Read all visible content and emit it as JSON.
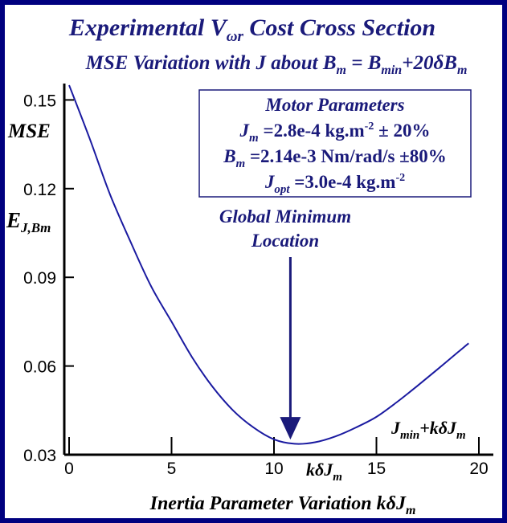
{
  "chart_data": {
    "type": "line",
    "title_parts": {
      "a": "Experimental V",
      "a_sub": "ωr",
      "b": " Cost Cross Section"
    },
    "subtitle_parts": {
      "a": "MSE Variation with J about B",
      "a_sub": "m",
      "b": " = B",
      "b_sub": "min",
      "c": "+20δB",
      "c_sub": "m"
    },
    "ylabel_parts": {
      "mse": "MSE",
      "e": "E",
      "e_sub": "J,Bm"
    },
    "xlabel": "Inertia Parameter Variation kδJ",
    "xlabel_sub": "m",
    "x_inner_label": "kδJ",
    "x_inner_label_sub": "m",
    "curve_label": {
      "a": "J",
      "a_sub": "min",
      "b": "+kδJ",
      "b_sub": "m"
    },
    "annotation": {
      "line1": "Global Minimum",
      "line2": "Location",
      "arrow_x": 10.8,
      "arrow_tip_y": 0.0335
    },
    "params_box": {
      "title": "Motor Parameters",
      "line1": {
        "a": "J",
        "a_sub": "m",
        "b": " =2.8e-4 kg.m",
        "b_sup": "-2",
        "c": " ± 20%"
      },
      "line2": {
        "a": "B",
        "a_sub": "m",
        "b": " =2.14e-3 Nm/rad/s ±80%"
      },
      "line3": {
        "a": "J",
        "a_sub": "opt",
        "b": " =3.0e-4 kg.m",
        "b_sup": "-2"
      }
    },
    "xlim": [
      0,
      20.5
    ],
    "ylim": [
      0.03,
      0.155
    ],
    "x_ticks": [
      0,
      5,
      10,
      15,
      20
    ],
    "y_ticks": [
      0.03,
      0.06,
      0.09,
      0.12,
      0.15
    ],
    "x_tick_labels": [
      "0",
      "5",
      "10",
      "15",
      "20"
    ],
    "y_tick_labels": [
      "0.03",
      "0.06",
      "0.09",
      "0.12",
      "0.15"
    ],
    "series": [
      {
        "color": "#1a1aa0",
        "x": [
          0,
          1,
          2,
          3,
          4,
          5,
          6,
          7,
          8,
          9,
          10,
          11,
          12,
          13,
          14,
          15,
          16,
          17,
          18,
          19,
          19.5
        ],
        "y": [
          0.155,
          0.137,
          0.118,
          0.102,
          0.087,
          0.075,
          0.063,
          0.053,
          0.045,
          0.0392,
          0.0352,
          0.0337,
          0.0342,
          0.0362,
          0.0392,
          0.0428,
          0.0478,
          0.0533,
          0.059,
          0.0648,
          0.0677
        ]
      }
    ],
    "grid": false,
    "colors": {
      "frame": "#00007f",
      "text": "#1a1a7a",
      "curve": "#1a1aa0"
    }
  }
}
